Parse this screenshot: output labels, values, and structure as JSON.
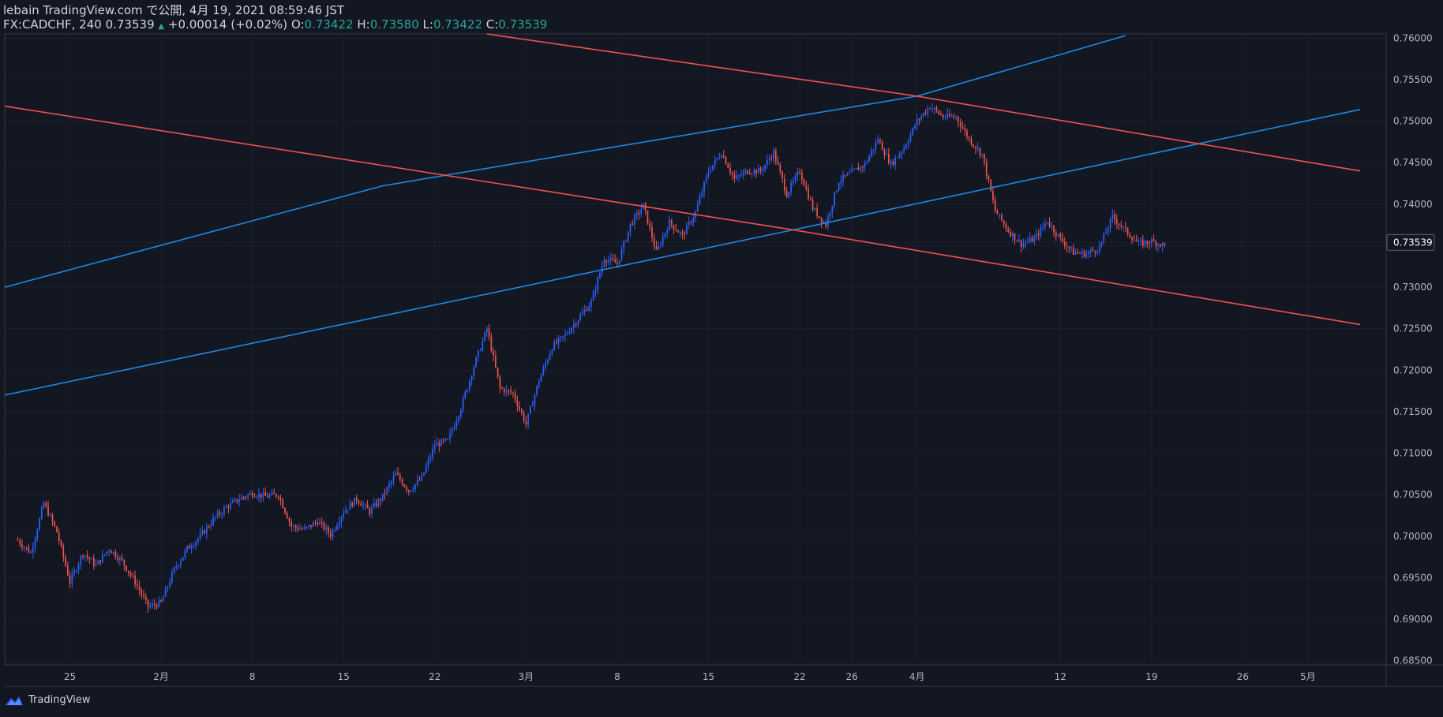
{
  "header": {
    "published": "lebain TradingView.com で公開, 4月 19, 2021 08:59:46 JST",
    "symbol": "FX:CADCHF, 240",
    "last": "0.73539",
    "change": "+0.00014 (+0.02%)",
    "open_label": "O:",
    "open": "0.73422",
    "high_label": "H:",
    "high": "0.73580",
    "low_label": "L:",
    "low": "0.73422",
    "close_label": "C:",
    "close": "0.73539"
  },
  "footer": {
    "brand": "TradingView"
  },
  "colors": {
    "background": "#131722",
    "bull": "#2962ff",
    "bear": "#ef5350",
    "uptrend_line": "#1e88e5",
    "downtrend_line": "#f0524f",
    "text": "#d1d4dc",
    "up_text": "#26a69a"
  },
  "chart_data": {
    "type": "candlestick",
    "symbol": "FX:CADCHF",
    "timeframe": "240",
    "last_price_label": "0.73539",
    "ylim": [
      0.6845,
      0.7605
    ],
    "y_ticks": [
      "0.68500",
      "0.69000",
      "0.69500",
      "0.70000",
      "0.70500",
      "0.71000",
      "0.71500",
      "0.72000",
      "0.72500",
      "0.73000",
      "0.73500",
      "0.74000",
      "0.74500",
      "0.75000",
      "0.75500",
      "0.76000"
    ],
    "x_ticks": [
      {
        "label": "25",
        "t": 4
      },
      {
        "label": "2月",
        "t": 11
      },
      {
        "label": "8",
        "t": 18
      },
      {
        "label": "15",
        "t": 25
      },
      {
        "label": "22",
        "t": 32
      },
      {
        "label": "3月",
        "t": 39
      },
      {
        "label": "8",
        "t": 46
      },
      {
        "label": "15",
        "t": 53
      },
      {
        "label": "22",
        "t": 60
      },
      {
        "label": "26",
        "t": 64
      },
      {
        "label": "4月",
        "t": 69
      },
      {
        "label": "12",
        "t": 80
      },
      {
        "label": "19",
        "t": 87
      },
      {
        "label": "26",
        "t": 94
      },
      {
        "label": "5月",
        "t": 99
      }
    ],
    "xlim": [
      -1,
      105
    ],
    "price_path": [
      [
        0,
        0.6995
      ],
      [
        1,
        0.698
      ],
      [
        2,
        0.704
      ],
      [
        3,
        0.7005
      ],
      [
        4,
        0.6945
      ],
      [
        5,
        0.698
      ],
      [
        6,
        0.6965
      ],
      [
        7,
        0.6985
      ],
      [
        8,
        0.697
      ],
      [
        9,
        0.6945
      ],
      [
        10,
        0.6915
      ],
      [
        11,
        0.692
      ],
      [
        12,
        0.696
      ],
      [
        13,
        0.6985
      ],
      [
        14,
        0.7
      ],
      [
        15,
        0.702
      ],
      [
        16,
        0.7035
      ],
      [
        17,
        0.7045
      ],
      [
        18,
        0.7052
      ],
      [
        19,
        0.7048
      ],
      [
        20,
        0.705
      ],
      [
        21,
        0.7012
      ],
      [
        22,
        0.7008
      ],
      [
        23,
        0.7018
      ],
      [
        24,
        0.7002
      ],
      [
        25,
        0.703
      ],
      [
        26,
        0.7045
      ],
      [
        27,
        0.703
      ],
      [
        28,
        0.7048
      ],
      [
        29,
        0.7075
      ],
      [
        30,
        0.7055
      ],
      [
        31,
        0.707
      ],
      [
        32,
        0.711
      ],
      [
        33,
        0.7115
      ],
      [
        34,
        0.7155
      ],
      [
        35,
        0.7205
      ],
      [
        36,
        0.725
      ],
      [
        37,
        0.7178
      ],
      [
        38,
        0.7172
      ],
      [
        39,
        0.7135
      ],
      [
        40,
        0.7188
      ],
      [
        41,
        0.7228
      ],
      [
        42,
        0.7242
      ],
      [
        43,
        0.7262
      ],
      [
        44,
        0.7282
      ],
      [
        45,
        0.7335
      ],
      [
        46,
        0.7328
      ],
      [
        47,
        0.7375
      ],
      [
        48,
        0.7398
      ],
      [
        49,
        0.7342
      ],
      [
        50,
        0.7378
      ],
      [
        51,
        0.7362
      ],
      [
        52,
        0.739
      ],
      [
        53,
        0.744
      ],
      [
        54,
        0.7462
      ],
      [
        55,
        0.743
      ],
      [
        56,
        0.744
      ],
      [
        57,
        0.744
      ],
      [
        58,
        0.7462
      ],
      [
        59,
        0.7412
      ],
      [
        60,
        0.744
      ],
      [
        61,
        0.7395
      ],
      [
        62,
        0.7375
      ],
      [
        63,
        0.7428
      ],
      [
        64,
        0.7438
      ],
      [
        65,
        0.7448
      ],
      [
        66,
        0.7478
      ],
      [
        67,
        0.7448
      ],
      [
        68,
        0.7468
      ],
      [
        69,
        0.75
      ],
      [
        70,
        0.7518
      ],
      [
        71,
        0.7505
      ],
      [
        72,
        0.7505
      ],
      [
        73,
        0.7478
      ],
      [
        74,
        0.746
      ],
      [
        75,
        0.7392
      ],
      [
        76,
        0.7368
      ],
      [
        77,
        0.7352
      ],
      [
        78,
        0.7358
      ],
      [
        79,
        0.738
      ],
      [
        80,
        0.7358
      ],
      [
        81,
        0.7342
      ],
      [
        82,
        0.734
      ],
      [
        83,
        0.7348
      ],
      [
        84,
        0.7385
      ],
      [
        85,
        0.7368
      ],
      [
        86,
        0.7352
      ],
      [
        87,
        0.7355
      ],
      [
        88,
        0.735
      ]
    ],
    "trend_lines": [
      {
        "color": "#1e88e5",
        "points": [
          [
            -1,
            0.73
          ],
          [
            28,
            0.7422
          ],
          [
            69,
            0.753
          ],
          [
            85,
            0.7603
          ]
        ]
      },
      {
        "color": "#1e88e5",
        "points": [
          [
            -1,
            0.717
          ],
          [
            59.5,
            0.7369
          ],
          [
            103,
            0.7514
          ]
        ]
      },
      {
        "color": "#f0524f",
        "points": [
          [
            -1,
            0.7518
          ],
          [
            59.5,
            0.7369
          ],
          [
            103,
            0.7255
          ]
        ]
      },
      {
        "color": "#f0524f",
        "points": [
          [
            36,
            0.7605
          ],
          [
            69,
            0.753
          ],
          [
            103,
            0.744
          ]
        ]
      }
    ]
  }
}
